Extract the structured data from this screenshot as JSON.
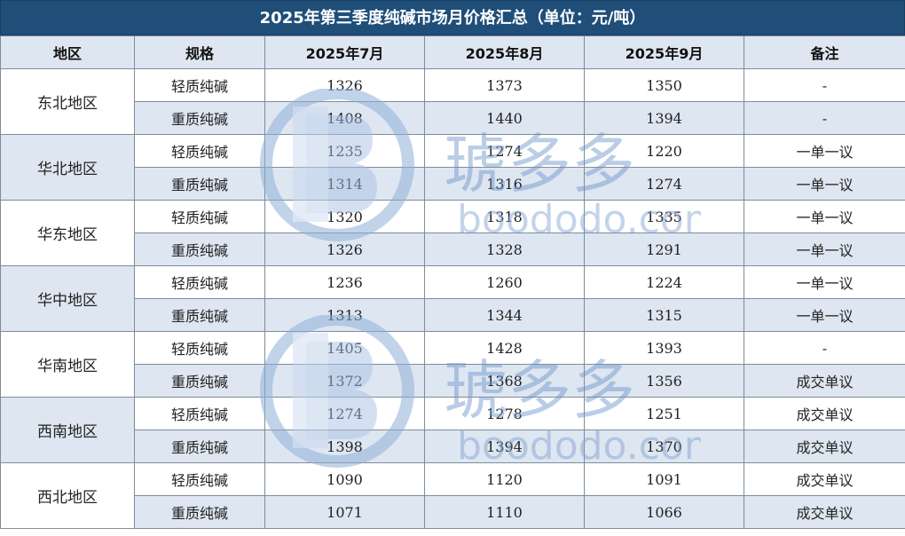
{
  "title": "2025年第三季度纯碱市场月价格汇总（单位：元/吨）",
  "headers": [
    "地区",
    "规格",
    "2025年7月",
    "2025年8月",
    "2025年9月",
    "备注"
  ],
  "regions": [
    {
      "name": "东北地区",
      "rows": [
        {
          "spec": "轻质纯碱",
          "jul": "1326",
          "aug": "1373",
          "sep": "1350",
          "note": "-"
        },
        {
          "spec": "重质纯碱",
          "jul": "1408",
          "aug": "1440",
          "sep": "1394",
          "note": "-"
        }
      ]
    },
    {
      "name": "华北地区",
      "rows": [
        {
          "spec": "轻质纯碱",
          "jul": "1235",
          "aug": "1274",
          "sep": "1220",
          "note": "一单一议"
        },
        {
          "spec": "重质纯碱",
          "jul": "1314",
          "aug": "1316",
          "sep": "1274",
          "note": "一单一议"
        }
      ]
    },
    {
      "name": "华东地区",
      "rows": [
        {
          "spec": "轻质纯碱",
          "jul": "1320",
          "aug": "1318",
          "sep": "1335",
          "note": "一单一议"
        },
        {
          "spec": "重质纯碱",
          "jul": "1326",
          "aug": "1328",
          "sep": "1291",
          "note": "一单一议"
        }
      ]
    },
    {
      "name": "华中地区",
      "rows": [
        {
          "spec": "轻质纯碱",
          "jul": "1236",
          "aug": "1260",
          "sep": "1224",
          "note": "一单一议"
        },
        {
          "spec": "重质纯碱",
          "jul": "1313",
          "aug": "1344",
          "sep": "1315",
          "note": "一单一议"
        }
      ]
    },
    {
      "name": "华南地区",
      "rows": [
        {
          "spec": "轻质纯碱",
          "jul": "1405",
          "aug": "1428",
          "sep": "1393",
          "note": "-"
        },
        {
          "spec": "重质纯碱",
          "jul": "1372",
          "aug": "1368",
          "sep": "1356",
          "note": "成交单议"
        }
      ]
    },
    {
      "name": "西南地区",
      "rows": [
        {
          "spec": "轻质纯碱",
          "jul": "1274",
          "aug": "1278",
          "sep": "1251",
          "note": "成交单议"
        },
        {
          "spec": "重质纯碱",
          "jul": "1398",
          "aug": "1394",
          "sep": "1370",
          "note": "成交单议"
        }
      ]
    },
    {
      "name": "西北地区",
      "rows": [
        {
          "spec": "轻质纯碱",
          "jul": "1090",
          "aug": "1120",
          "sep": "1091",
          "note": "成交单议"
        },
        {
          "spec": "重质纯碱",
          "jul": "1071",
          "aug": "1110",
          "sep": "1066",
          "note": "成交单议"
        }
      ]
    }
  ],
  "watermark": {
    "brand": "琥多多",
    "url": "boododo.com"
  },
  "colors": {
    "title_bg": "#1f4e79",
    "header_bg": "#dde6f1",
    "stripe": "#dde6f1"
  }
}
